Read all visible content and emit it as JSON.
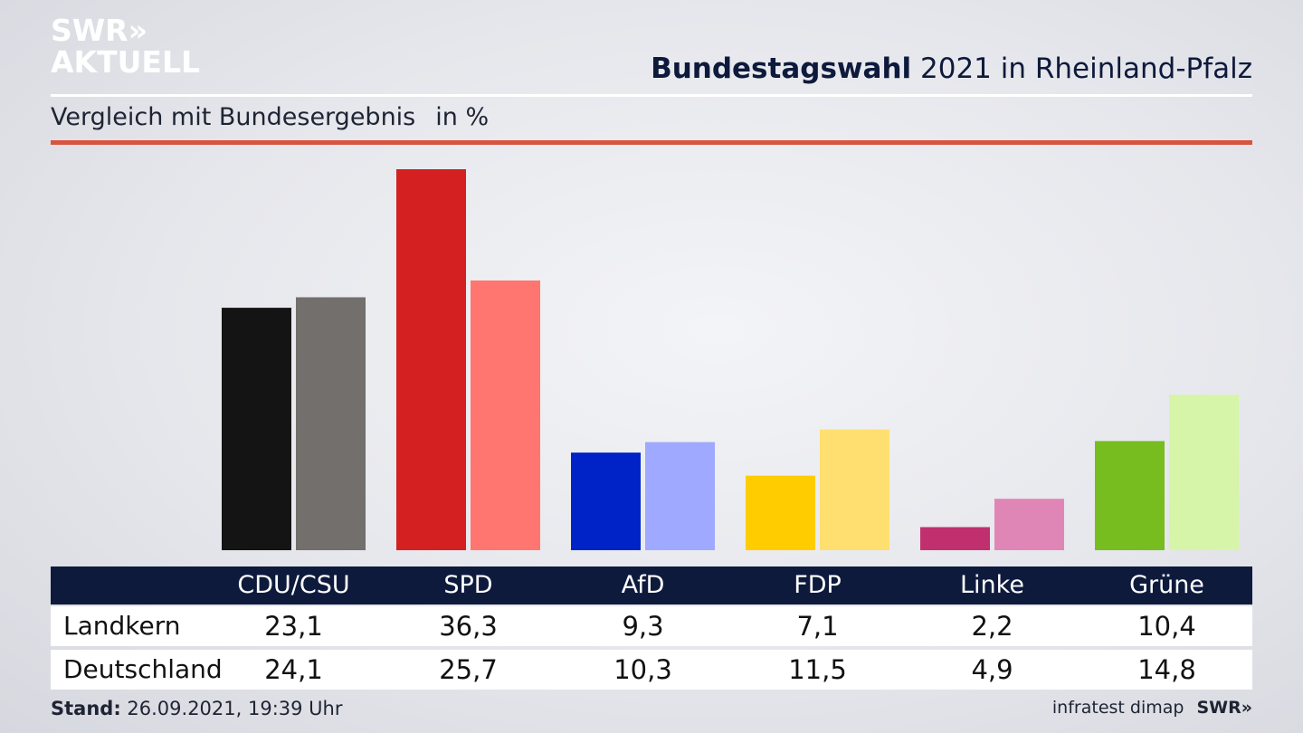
{
  "logo": {
    "line1": "SWR»",
    "line2": "AKTUELL"
  },
  "header": {
    "title_bold": "Bundestagswahl",
    "title_rest": " 2021 in Rheinland-Pfalz",
    "subtitle": "Vergleich mit Bundesergebnis",
    "unit": "in %"
  },
  "chart_data": {
    "type": "bar",
    "categories": [
      "CDU/CSU",
      "SPD",
      "AfD",
      "FDP",
      "Linke",
      "Grüne"
    ],
    "series": [
      {
        "name": "Landkern",
        "values": [
          23.1,
          36.3,
          9.3,
          7.1,
          2.2,
          10.4
        ]
      },
      {
        "name": "Deutschland",
        "values": [
          24.1,
          25.7,
          10.3,
          11.5,
          4.9,
          14.8
        ]
      }
    ],
    "value_labels": {
      "Landkern": [
        "23,1",
        "36,3",
        "9,3",
        "7,1",
        "2,2",
        "10,4"
      ],
      "Deutschland": [
        "24,1",
        "25,7",
        "10,3",
        "11,5",
        "4,9",
        "14,8"
      ]
    },
    "colors": {
      "Landkern": [
        "#141414",
        "#d42020",
        "#0023c8",
        "#ffcc00",
        "#c0306f",
        "#78bd20"
      ],
      "Deutschland": [
        "#726f6c",
        "#ff7670",
        "#9ea9ff",
        "#ffdf70",
        "#e086b6",
        "#d6f5a8"
      ]
    },
    "ylim": [
      0,
      36.3
    ],
    "grid": false
  },
  "footer": {
    "stand_label": "Stand:",
    "stand_value": " 26.09.2021, 19:39 Uhr",
    "source": "infratest dimap",
    "brand": "SWR»"
  }
}
